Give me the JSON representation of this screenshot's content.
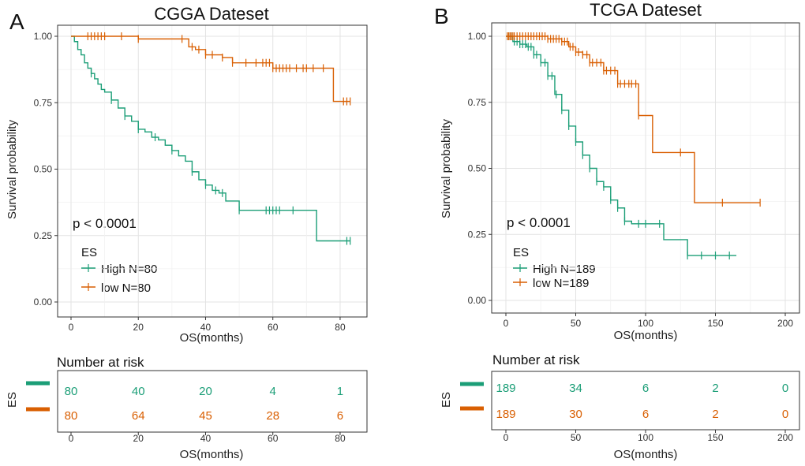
{
  "colors": {
    "high": "#1b9e77",
    "low": "#d95f02"
  },
  "chart_data": [
    {
      "type": "line",
      "panel_label": "A",
      "title": "CGGA Dateset",
      "xlabel": "OS(months)",
      "ylabel": "Survival probability",
      "xlim": [
        0,
        84
      ],
      "ylim": [
        0,
        1.0
      ],
      "xticks": [
        0,
        20,
        40,
        60,
        80
      ],
      "yticks": [
        0.0,
        0.25,
        0.5,
        0.75,
        1.0
      ],
      "ytick_labels": [
        "0.00",
        "0.25",
        "0.50",
        "0.75",
        "1.00"
      ],
      "pvalue": "p < 0.0001",
      "legend_title": "ES",
      "legend": [
        "High N=80",
        "low N=80"
      ],
      "series": [
        {
          "name": "High",
          "color_key": "high",
          "x": [
            0,
            1,
            2,
            3,
            4,
            5,
            6,
            7,
            8,
            9,
            10,
            12,
            14,
            16,
            18,
            20,
            22,
            24,
            26,
            28,
            30,
            32,
            34,
            36,
            38,
            40,
            42,
            44,
            46,
            50,
            55,
            60,
            65,
            73,
            83
          ],
          "y": [
            1.0,
            0.98,
            0.95,
            0.93,
            0.9,
            0.88,
            0.86,
            0.84,
            0.82,
            0.8,
            0.79,
            0.76,
            0.73,
            0.7,
            0.68,
            0.65,
            0.64,
            0.62,
            0.61,
            0.59,
            0.57,
            0.55,
            0.53,
            0.49,
            0.46,
            0.44,
            0.42,
            0.41,
            0.38,
            0.345,
            0.345,
            0.345,
            0.345,
            0.23,
            0.23
          ],
          "censor_x": [
            6,
            12,
            16,
            20,
            25,
            30,
            36,
            40,
            43,
            45,
            50,
            58,
            59,
            60,
            61,
            62,
            66,
            82,
            83
          ]
        },
        {
          "name": "low",
          "color_key": "low",
          "x": [
            0,
            20,
            25,
            30,
            35,
            37,
            40,
            45,
            48,
            55,
            60,
            65,
            70,
            78,
            83
          ],
          "y": [
            1.0,
            0.99,
            0.99,
            0.99,
            0.96,
            0.95,
            0.93,
            0.92,
            0.9,
            0.9,
            0.88,
            0.88,
            0.88,
            0.755,
            0.755
          ],
          "censor_x": [
            5,
            6,
            7,
            8,
            9,
            10,
            15,
            20,
            33,
            36,
            38,
            40,
            42,
            45,
            48,
            52,
            55,
            57,
            58,
            59,
            60,
            61,
            62,
            63,
            64,
            65,
            67,
            69,
            70,
            72,
            75,
            81,
            82,
            83
          ]
        }
      ],
      "risk_table": {
        "title": "Number at risk",
        "strata_label": "ES",
        "xlabel": "OS(months)",
        "times": [
          0,
          20,
          40,
          60,
          80
        ],
        "rows": [
          {
            "name": "High",
            "color_key": "high",
            "values": [
              "80",
              "40",
              "20",
              "4",
              "1"
            ]
          },
          {
            "name": "low",
            "color_key": "low",
            "values": [
              "80",
              "64",
              "45",
              "28",
              "6"
            ]
          }
        ]
      }
    },
    {
      "type": "line",
      "panel_label": "B",
      "title": "TCGA Dateset",
      "xlabel": "OS(months)",
      "ylabel": "Survival probability",
      "xlim": [
        0,
        200
      ],
      "ylim": [
        0,
        1.0
      ],
      "xticks": [
        0,
        50,
        100,
        150,
        200
      ],
      "yticks": [
        0.0,
        0.25,
        0.5,
        0.75,
        1.0
      ],
      "ytick_labels": [
        "0.00",
        "0.25",
        "0.50",
        "0.75",
        "1.00"
      ],
      "pvalue": "p < 0.0001",
      "legend_title": "ES",
      "legend": [
        "High N=189",
        "low N=189"
      ],
      "series": [
        {
          "name": "High",
          "color_key": "high",
          "x": [
            0,
            5,
            10,
            15,
            20,
            25,
            30,
            35,
            40,
            45,
            50,
            55,
            60,
            65,
            70,
            75,
            80,
            85,
            90,
            100,
            113,
            120,
            130,
            165
          ],
          "y": [
            1.0,
            0.98,
            0.97,
            0.96,
            0.93,
            0.9,
            0.85,
            0.78,
            0.72,
            0.66,
            0.6,
            0.55,
            0.5,
            0.45,
            0.43,
            0.38,
            0.35,
            0.3,
            0.29,
            0.29,
            0.23,
            0.23,
            0.17,
            0.17
          ],
          "censor_x": [
            2,
            4,
            6,
            8,
            10,
            12,
            14,
            16,
            18,
            20,
            22,
            25,
            28,
            30,
            33,
            36,
            40,
            45,
            50,
            55,
            60,
            65,
            70,
            75,
            80,
            85,
            95,
            100,
            110,
            130,
            140,
            150,
            160
          ]
        },
        {
          "name": "low",
          "color_key": "low",
          "x": [
            0,
            30,
            40,
            45,
            50,
            55,
            60,
            65,
            70,
            75,
            80,
            85,
            95,
            105,
            125,
            135,
            155,
            182
          ],
          "y": [
            1.0,
            0.99,
            0.98,
            0.96,
            0.94,
            0.93,
            0.9,
            0.9,
            0.87,
            0.87,
            0.82,
            0.82,
            0.7,
            0.56,
            0.56,
            0.37,
            0.37,
            0.37
          ],
          "censor_x": [
            1,
            2,
            3,
            4,
            5,
            6,
            8,
            10,
            12,
            14,
            16,
            18,
            20,
            22,
            24,
            26,
            28,
            30,
            32,
            34,
            36,
            38,
            40,
            42,
            44,
            46,
            48,
            50,
            52,
            55,
            58,
            60,
            62,
            65,
            68,
            70,
            72,
            75,
            78,
            80,
            82,
            85,
            88,
            90,
            93,
            95,
            125,
            155,
            182
          ]
        }
      ],
      "risk_table": {
        "title": "Number at risk",
        "strata_label": "ES",
        "xlabel": "OS(months)",
        "times": [
          0,
          50,
          100,
          150,
          200
        ],
        "rows": [
          {
            "name": "High",
            "color_key": "high",
            "values": [
              "189",
              "34",
              "6",
              "2",
              "0"
            ]
          },
          {
            "name": "low",
            "color_key": "low",
            "values": [
              "189",
              "30",
              "6",
              "2",
              "0"
            ]
          }
        ]
      }
    }
  ]
}
